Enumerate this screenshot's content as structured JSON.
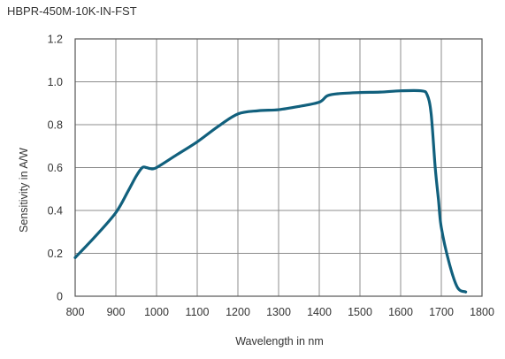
{
  "chart_data": {
    "type": "line",
    "title": "HBPR-450M-10K-IN-FST",
    "xlabel": "Wavelength in nm",
    "ylabel": "Sensitivity in A/W",
    "xlim": [
      800,
      1800
    ],
    "ylim": [
      0,
      1.2
    ],
    "xticks": [
      "800",
      "900",
      "1000",
      "1100",
      "1200",
      "1300",
      "1400",
      "1500",
      "1600",
      "1700",
      "1800"
    ],
    "yticks": [
      "0",
      "0.2",
      "0.4",
      "0.6",
      "0.8",
      "1.0",
      "1.2"
    ],
    "grid": true,
    "legend": "none",
    "series": [
      {
        "color": "#11607d",
        "x": [
          800,
          850,
          900,
          930,
          950,
          965,
          975,
          985,
          1000,
          1050,
          1100,
          1150,
          1200,
          1250,
          1300,
          1350,
          1400,
          1420,
          1450,
          1500,
          1550,
          1600,
          1650,
          1665,
          1675,
          1685,
          1693,
          1700,
          1720,
          1740,
          1760
        ],
        "y": [
          0.18,
          0.28,
          0.39,
          0.49,
          0.56,
          0.6,
          0.6,
          0.595,
          0.6,
          0.66,
          0.72,
          0.79,
          0.85,
          0.865,
          0.87,
          0.885,
          0.905,
          0.935,
          0.945,
          0.95,
          0.952,
          0.958,
          0.958,
          0.94,
          0.85,
          0.6,
          0.45,
          0.32,
          0.15,
          0.04,
          0.02
        ]
      }
    ]
  }
}
